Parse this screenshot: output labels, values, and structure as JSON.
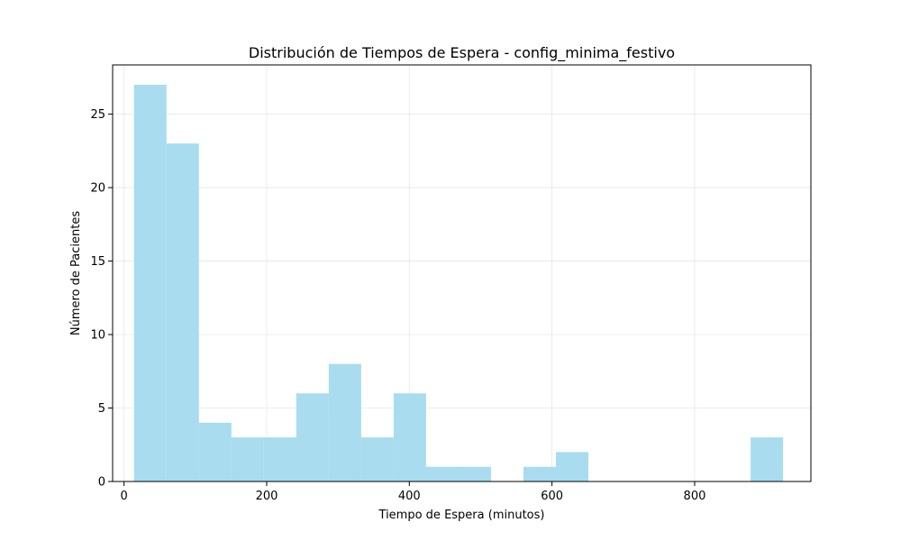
{
  "chart_data": {
    "type": "bar",
    "subtype": "histogram",
    "title": "Distribución de Tiempos de Espera - config_minima_festivo",
    "xlabel": "Tiempo de Espera (minutos)",
    "ylabel": "Número de Pacientes",
    "xlim": [
      -16,
      963
    ],
    "ylim": [
      0,
      28.35
    ],
    "xticks": [
      0,
      200,
      400,
      600,
      800
    ],
    "yticks": [
      0,
      5,
      10,
      15,
      20,
      25
    ],
    "grid": true,
    "bar_color": "#a8dcee",
    "bins": [
      {
        "start": 14,
        "end": 59.5,
        "count": 27
      },
      {
        "start": 59.5,
        "end": 105,
        "count": 23
      },
      {
        "start": 105,
        "end": 150.5,
        "count": 4
      },
      {
        "start": 150.5,
        "end": 196,
        "count": 3
      },
      {
        "start": 196,
        "end": 241.5,
        "count": 3
      },
      {
        "start": 241.5,
        "end": 287,
        "count": 6
      },
      {
        "start": 287,
        "end": 332.5,
        "count": 8
      },
      {
        "start": 332.5,
        "end": 378,
        "count": 3
      },
      {
        "start": 378,
        "end": 423.5,
        "count": 6
      },
      {
        "start": 423.5,
        "end": 469,
        "count": 1
      },
      {
        "start": 469,
        "end": 514.5,
        "count": 1
      },
      {
        "start": 514.5,
        "end": 560,
        "count": 0
      },
      {
        "start": 560,
        "end": 605.5,
        "count": 1
      },
      {
        "start": 605.5,
        "end": 651,
        "count": 2
      },
      {
        "start": 651,
        "end": 696.5,
        "count": 0
      },
      {
        "start": 696.5,
        "end": 742,
        "count": 0
      },
      {
        "start": 742,
        "end": 787.5,
        "count": 0
      },
      {
        "start": 787.5,
        "end": 833,
        "count": 0
      },
      {
        "start": 833,
        "end": 878.5,
        "count": 0
      },
      {
        "start": 878.5,
        "end": 924,
        "count": 3
      }
    ]
  }
}
